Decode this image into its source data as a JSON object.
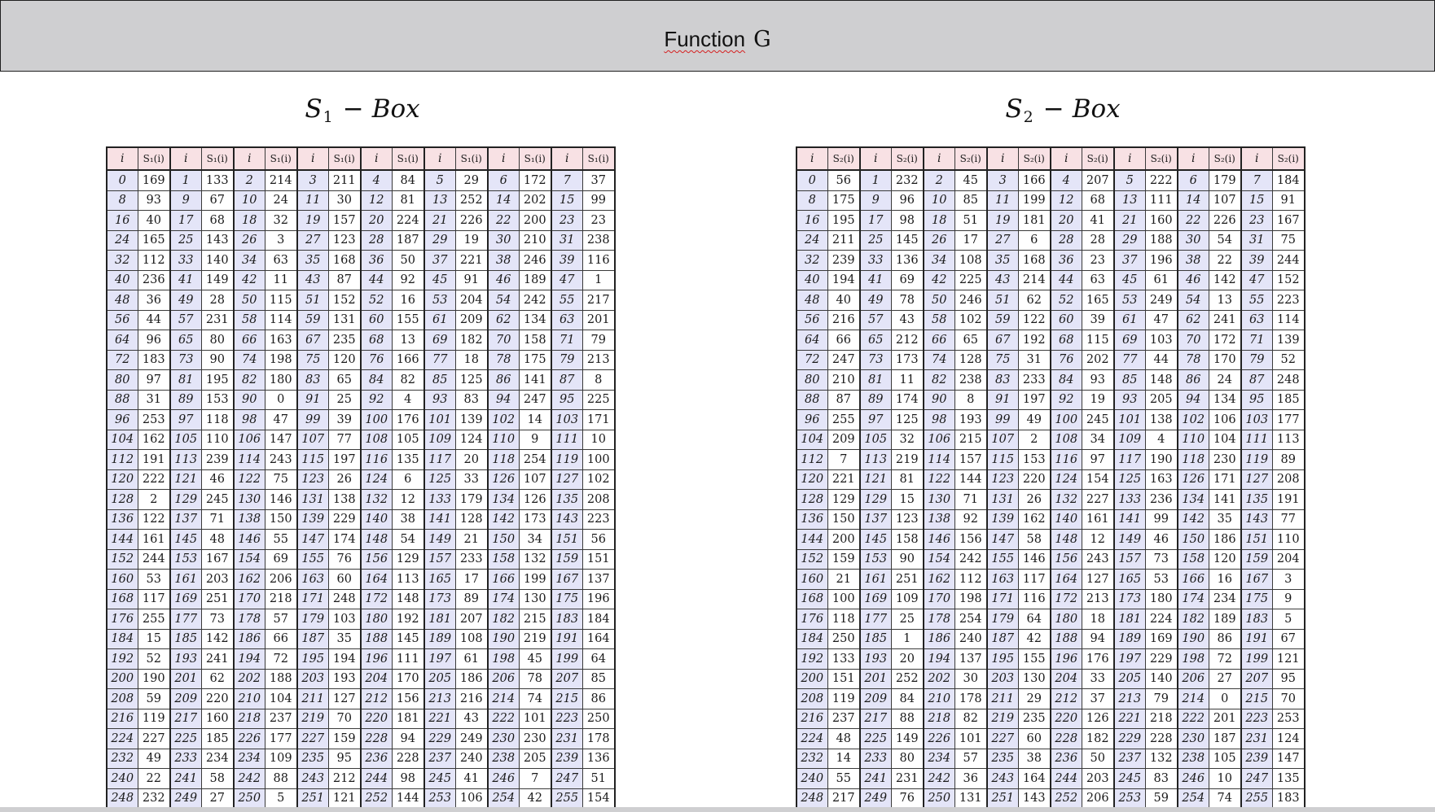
{
  "header": {
    "title_word": "Function",
    "title_letter": "G"
  },
  "tables": [
    {
      "italic_letter": "S",
      "subscript": "1",
      "minus": "−",
      "suffix": "Box",
      "col_i_label": "i",
      "col_val_label": "S₁(i)",
      "rows": [
        [
          169,
          133,
          214,
          211,
          84,
          29,
          172,
          37
        ],
        [
          93,
          67,
          24,
          30,
          81,
          252,
          202,
          99
        ],
        [
          40,
          68,
          32,
          157,
          224,
          226,
          200,
          23
        ],
        [
          165,
          143,
          3,
          123,
          187,
          19,
          210,
          238
        ],
        [
          112,
          140,
          63,
          168,
          50,
          221,
          246,
          116
        ],
        [
          236,
          149,
          11,
          87,
          92,
          91,
          189,
          1
        ],
        [
          36,
          28,
          115,
          152,
          16,
          204,
          242,
          217
        ],
        [
          44,
          231,
          114,
          131,
          155,
          209,
          134,
          201
        ],
        [
          96,
          80,
          163,
          235,
          13,
          182,
          158,
          79
        ],
        [
          183,
          90,
          198,
          120,
          166,
          18,
          175,
          213
        ],
        [
          97,
          195,
          180,
          65,
          82,
          125,
          141,
          8
        ],
        [
          31,
          153,
          0,
          25,
          4,
          83,
          247,
          225
        ],
        [
          253,
          118,
          47,
          39,
          176,
          139,
          14,
          171
        ],
        [
          162,
          110,
          147,
          77,
          105,
          124,
          9,
          10
        ],
        [
          191,
          239,
          243,
          197,
          135,
          20,
          254,
          100
        ],
        [
          222,
          46,
          75,
          26,
          6,
          33,
          107,
          102
        ],
        [
          2,
          245,
          146,
          138,
          12,
          179,
          126,
          208
        ],
        [
          122,
          71,
          150,
          229,
          38,
          128,
          173,
          223
        ],
        [
          161,
          48,
          55,
          174,
          54,
          21,
          34,
          56
        ],
        [
          244,
          167,
          69,
          76,
          129,
          233,
          132,
          151
        ],
        [
          53,
          203,
          206,
          60,
          113,
          17,
          199,
          137
        ],
        [
          117,
          251,
          218,
          248,
          148,
          89,
          130,
          196
        ],
        [
          255,
          73,
          57,
          103,
          192,
          207,
          215,
          184
        ],
        [
          15,
          142,
          66,
          35,
          145,
          108,
          219,
          164
        ],
        [
          52,
          241,
          72,
          194,
          111,
          61,
          45,
          64
        ],
        [
          190,
          62,
          188,
          193,
          170,
          186,
          78,
          85
        ],
        [
          59,
          220,
          104,
          127,
          156,
          216,
          74,
          86
        ],
        [
          119,
          160,
          237,
          70,
          181,
          43,
          101,
          250
        ],
        [
          227,
          185,
          177,
          159,
          94,
          249,
          230,
          178
        ],
        [
          49,
          234,
          109,
          95,
          228,
          240,
          205,
          136
        ],
        [
          22,
          58,
          88,
          212,
          98,
          41,
          7,
          51
        ],
        [
          232,
          27,
          5,
          121,
          144,
          106,
          42,
          154
        ]
      ]
    },
    {
      "italic_letter": "S",
      "subscript": "2",
      "minus": "−",
      "suffix": "Box",
      "col_i_label": "i",
      "col_val_label": "S₂(i)",
      "rows": [
        [
          56,
          232,
          45,
          166,
          207,
          222,
          179,
          184
        ],
        [
          175,
          96,
          85,
          199,
          68,
          111,
          107,
          91
        ],
        [
          195,
          98,
          51,
          181,
          41,
          160,
          226,
          167
        ],
        [
          211,
          145,
          17,
          6,
          28,
          188,
          54,
          75
        ],
        [
          239,
          136,
          108,
          168,
          23,
          196,
          22,
          244
        ],
        [
          194,
          69,
          225,
          214,
          63,
          61,
          142,
          152
        ],
        [
          40,
          78,
          246,
          62,
          165,
          249,
          13,
          223
        ],
        [
          216,
          43,
          102,
          122,
          39,
          47,
          241,
          114
        ],
        [
          66,
          212,
          65,
          192,
          115,
          103,
          172,
          139
        ],
        [
          247,
          173,
          128,
          31,
          202,
          44,
          170,
          52
        ],
        [
          210,
          11,
          238,
          233,
          93,
          148,
          24,
          248
        ],
        [
          87,
          174,
          8,
          197,
          19,
          205,
          134,
          185
        ],
        [
          255,
          125,
          193,
          49,
          245,
          138,
          106,
          177
        ],
        [
          209,
          32,
          215,
          2,
          34,
          4,
          104,
          113
        ],
        [
          7,
          219,
          157,
          153,
          97,
          190,
          230,
          89
        ],
        [
          221,
          81,
          144,
          220,
          154,
          163,
          171,
          208
        ],
        [
          129,
          15,
          71,
          26,
          227,
          236,
          141,
          191
        ],
        [
          150,
          123,
          92,
          162,
          161,
          99,
          35,
          77
        ],
        [
          200,
          158,
          156,
          58,
          12,
          46,
          186,
          110
        ],
        [
          159,
          90,
          242,
          146,
          243,
          73,
          120,
          204
        ],
        [
          21,
          251,
          112,
          117,
          127,
          53,
          16,
          3
        ],
        [
          100,
          109,
          198,
          116,
          213,
          180,
          234,
          9
        ],
        [
          118,
          25,
          254,
          64,
          18,
          224,
          189,
          5
        ],
        [
          250,
          1,
          240,
          42,
          94,
          169,
          86,
          67
        ],
        [
          133,
          20,
          137,
          155,
          176,
          229,
          72,
          121
        ],
        [
          151,
          252,
          30,
          130,
          33,
          140,
          27,
          95
        ],
        [
          119,
          84,
          178,
          29,
          37,
          79,
          0,
          70
        ],
        [
          237,
          88,
          82,
          235,
          126,
          218,
          201,
          253
        ],
        [
          48,
          149,
          101,
          60,
          182,
          228,
          187,
          124
        ],
        [
          14,
          80,
          57,
          38,
          50,
          132,
          105,
          147
        ],
        [
          55,
          231,
          36,
          164,
          203,
          83,
          10,
          135
        ],
        [
          217,
          76,
          131,
          143,
          206,
          59,
          74,
          183
        ]
      ]
    }
  ]
}
